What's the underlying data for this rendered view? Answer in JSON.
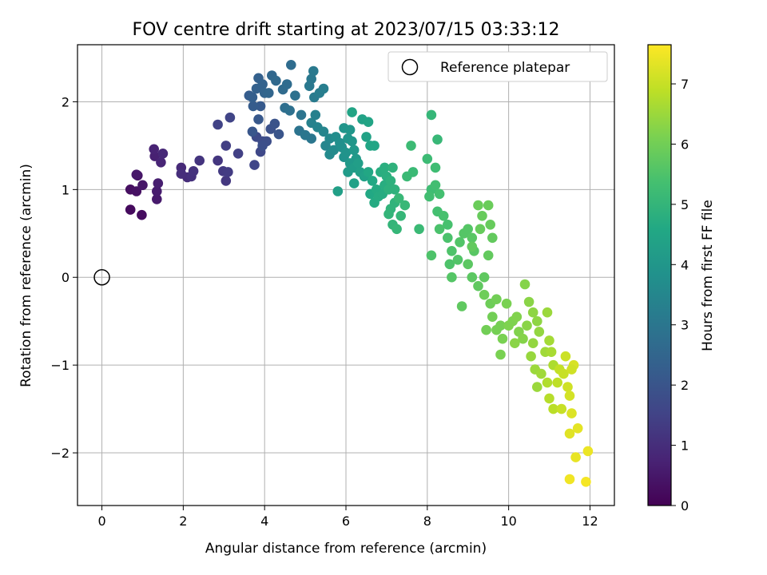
{
  "chart_data": {
    "type": "scatter",
    "title": "FOV centre drift starting at 2023/07/15 03:33:12",
    "xlabel": "Angular distance from reference (arcmin)",
    "ylabel": "Rotation from reference (arcmin)",
    "xlim": [
      -0.6,
      12.6
    ],
    "ylim": [
      -2.6,
      2.65
    ],
    "xticks": [
      0,
      2,
      4,
      6,
      8,
      10,
      12
    ],
    "yticks": [
      -2,
      -1,
      0,
      1,
      2
    ],
    "grid": true,
    "legend": {
      "position": "top-right",
      "entries": [
        "Reference platepar"
      ]
    },
    "reference_point": {
      "label": "Reference platepar",
      "x": 0,
      "y": 0
    },
    "colorbar": {
      "label": "Hours from first FF file",
      "colormap": "viridis",
      "range": [
        0,
        7.65
      ],
      "ticks": [
        0,
        1,
        2,
        3,
        4,
        5,
        6,
        7
      ]
    },
    "series": [
      {
        "points": [
          [
            0.7,
            0.77,
            0.2
          ],
          [
            0.98,
            0.71,
            0.25
          ],
          [
            0.7,
            1.0,
            0.3
          ],
          [
            0.85,
            0.98,
            0.35
          ],
          [
            0.88,
            1.16,
            0.4
          ],
          [
            1.0,
            1.05,
            0.45
          ],
          [
            0.85,
            1.17,
            0.5
          ],
          [
            1.35,
            0.89,
            0.55
          ],
          [
            1.35,
            0.98,
            0.6
          ],
          [
            1.38,
            1.07,
            0.65
          ],
          [
            1.3,
            1.38,
            0.7
          ],
          [
            1.28,
            1.46,
            0.75
          ],
          [
            1.45,
            1.31,
            0.8
          ],
          [
            1.5,
            1.41,
            0.85
          ],
          [
            1.95,
            1.25,
            0.9
          ],
          [
            2.1,
            1.14,
            0.95
          ],
          [
            1.95,
            1.18,
            1.0
          ],
          [
            2.2,
            1.15,
            1.05
          ],
          [
            2.25,
            1.21,
            1.1
          ],
          [
            2.4,
            1.33,
            1.15
          ],
          [
            2.85,
            1.33,
            1.2
          ],
          [
            3.05,
            1.1,
            1.25
          ],
          [
            2.98,
            1.21,
            1.3
          ],
          [
            3.1,
            1.2,
            1.35
          ],
          [
            3.05,
            1.5,
            1.4
          ],
          [
            3.35,
            1.41,
            1.45
          ],
          [
            2.85,
            1.74,
            1.5
          ],
          [
            3.15,
            1.82,
            1.55
          ],
          [
            3.75,
            1.28,
            1.6
          ],
          [
            3.9,
            1.43,
            1.65
          ],
          [
            3.8,
            1.6,
            1.7
          ],
          [
            3.95,
            1.55,
            1.75
          ],
          [
            4.05,
            1.55,
            1.8
          ],
          [
            3.95,
            1.5,
            1.85
          ],
          [
            4.15,
            1.69,
            1.9
          ],
          [
            4.25,
            1.75,
            1.95
          ],
          [
            4.35,
            1.63,
            2.0
          ],
          [
            3.7,
            1.66,
            2.05
          ],
          [
            3.85,
            1.8,
            2.1
          ],
          [
            3.9,
            1.95,
            2.15
          ],
          [
            3.72,
            1.95,
            2.2
          ],
          [
            3.62,
            2.07,
            2.25
          ],
          [
            3.7,
            2.05,
            2.3
          ],
          [
            3.8,
            2.15,
            2.35
          ],
          [
            3.85,
            2.27,
            2.35
          ],
          [
            3.95,
            2.2,
            2.4
          ],
          [
            4.0,
            2.1,
            2.45
          ],
          [
            4.1,
            2.1,
            2.5
          ],
          [
            4.18,
            2.3,
            2.55
          ],
          [
            4.28,
            2.24,
            2.6
          ],
          [
            4.45,
            2.14,
            2.65
          ],
          [
            4.55,
            2.2,
            2.7
          ],
          [
            4.65,
            2.42,
            2.7
          ],
          [
            4.5,
            1.93,
            2.75
          ],
          [
            4.62,
            1.9,
            2.8
          ],
          [
            4.75,
            2.07,
            2.85
          ],
          [
            4.85,
            1.67,
            2.9
          ],
          [
            4.9,
            1.85,
            2.95
          ],
          [
            5.0,
            1.62,
            3.0
          ],
          [
            5.15,
            1.58,
            3.0
          ],
          [
            5.1,
            2.18,
            3.05
          ],
          [
            5.15,
            2.26,
            3.05
          ],
          [
            5.2,
            2.35,
            3.1
          ],
          [
            5.22,
            2.05,
            3.15
          ],
          [
            5.35,
            2.1,
            3.2
          ],
          [
            5.45,
            2.15,
            3.25
          ],
          [
            5.25,
            1.85,
            3.3
          ],
          [
            5.15,
            1.76,
            3.35
          ],
          [
            5.3,
            1.71,
            3.4
          ],
          [
            5.45,
            1.66,
            3.45
          ],
          [
            5.5,
            1.5,
            3.5
          ],
          [
            5.6,
            1.58,
            3.55
          ],
          [
            5.6,
            1.4,
            3.6
          ],
          [
            5.7,
            1.45,
            3.65
          ],
          [
            5.75,
            1.6,
            3.7
          ],
          [
            5.85,
            1.53,
            3.75
          ],
          [
            5.9,
            1.48,
            3.8
          ],
          [
            5.95,
            1.37,
            3.85
          ],
          [
            6.0,
            1.42,
            3.9
          ],
          [
            6.05,
            1.58,
            3.95
          ],
          [
            5.95,
            1.7,
            3.95
          ],
          [
            6.1,
            1.68,
            4.0
          ],
          [
            6.15,
            1.55,
            4.0
          ],
          [
            6.2,
            1.45,
            4.05
          ],
          [
            6.25,
            1.35,
            4.1
          ],
          [
            6.1,
            1.3,
            4.1
          ],
          [
            6.05,
            1.2,
            4.15
          ],
          [
            6.2,
            1.25,
            4.2
          ],
          [
            6.3,
            1.3,
            4.25
          ],
          [
            6.35,
            1.2,
            4.3
          ],
          [
            5.8,
            0.98,
            4.3
          ],
          [
            6.2,
            1.07,
            4.35
          ],
          [
            6.45,
            1.15,
            4.35
          ],
          [
            6.5,
            1.6,
            4.4
          ],
          [
            6.4,
            1.8,
            4.4
          ],
          [
            6.15,
            1.88,
            4.45
          ],
          [
            6.55,
            1.77,
            4.45
          ],
          [
            6.6,
            1.5,
            4.5
          ],
          [
            6.7,
            1.5,
            4.5
          ],
          [
            6.55,
            1.2,
            4.55
          ],
          [
            6.65,
            1.1,
            4.6
          ],
          [
            6.6,
            0.95,
            4.6
          ],
          [
            6.7,
            0.85,
            4.65
          ],
          [
            6.75,
            1.0,
            4.65
          ],
          [
            6.8,
            0.92,
            4.7
          ],
          [
            6.9,
            0.95,
            4.7
          ],
          [
            6.95,
            1.05,
            4.75
          ],
          [
            6.85,
            1.2,
            4.75
          ],
          [
            6.95,
            1.25,
            4.8
          ],
          [
            7.0,
            1.15,
            4.8
          ],
          [
            7.05,
            1.0,
            4.85
          ],
          [
            7.1,
            1.1,
            4.85
          ],
          [
            7.15,
            1.25,
            4.9
          ],
          [
            7.2,
            1.0,
            4.9
          ],
          [
            7.2,
            0.85,
            4.95
          ],
          [
            7.1,
            0.78,
            4.95
          ],
          [
            7.05,
            0.72,
            5.0
          ],
          [
            7.15,
            0.6,
            5.0
          ],
          [
            7.25,
            0.55,
            5.05
          ],
          [
            7.35,
            0.7,
            5.05
          ],
          [
            7.3,
            0.9,
            5.1
          ],
          [
            7.45,
            0.82,
            5.1
          ],
          [
            7.5,
            1.15,
            5.15
          ],
          [
            7.65,
            1.2,
            5.15
          ],
          [
            7.6,
            1.5,
            5.2
          ],
          [
            8.0,
            1.35,
            5.2
          ],
          [
            8.2,
            1.25,
            5.25
          ],
          [
            8.1,
            1.0,
            5.25
          ],
          [
            8.05,
            0.92,
            5.3
          ],
          [
            8.2,
            1.05,
            5.3
          ],
          [
            8.3,
            0.95,
            5.35
          ],
          [
            8.25,
            0.75,
            5.35
          ],
          [
            8.4,
            0.7,
            5.4
          ],
          [
            8.5,
            0.6,
            5.4
          ],
          [
            8.3,
            0.55,
            5.45
          ],
          [
            8.5,
            0.45,
            5.45
          ],
          [
            8.6,
            0.3,
            5.5
          ],
          [
            8.55,
            0.15,
            5.5
          ],
          [
            8.75,
            0.2,
            5.55
          ],
          [
            8.8,
            0.4,
            5.55
          ],
          [
            8.9,
            0.5,
            5.6
          ],
          [
            9.0,
            0.55,
            5.6
          ],
          [
            9.1,
            0.45,
            5.65
          ],
          [
            9.15,
            0.3,
            5.65
          ],
          [
            9.0,
            0.15,
            5.7
          ],
          [
            9.1,
            0.0,
            5.7
          ],
          [
            9.25,
            -0.1,
            5.75
          ],
          [
            9.4,
            0.0,
            5.75
          ],
          [
            9.5,
            0.25,
            5.8
          ],
          [
            9.6,
            0.45,
            5.8
          ],
          [
            9.55,
            0.6,
            5.85
          ],
          [
            9.35,
            0.7,
            5.85
          ],
          [
            9.25,
            0.82,
            5.9
          ],
          [
            9.5,
            0.82,
            5.9
          ],
          [
            9.4,
            -0.2,
            5.95
          ],
          [
            9.55,
            -0.3,
            5.95
          ],
          [
            9.7,
            -0.25,
            6.0
          ],
          [
            9.6,
            -0.45,
            6.0
          ],
          [
            9.8,
            -0.55,
            6.05
          ],
          [
            9.7,
            -0.6,
            6.05
          ],
          [
            9.85,
            -0.7,
            6.1
          ],
          [
            9.8,
            -0.88,
            6.1
          ],
          [
            10.0,
            -0.55,
            6.15
          ],
          [
            10.1,
            -0.5,
            6.15
          ],
          [
            10.2,
            -0.45,
            6.2
          ],
          [
            10.25,
            -0.62,
            6.2
          ],
          [
            10.35,
            -0.7,
            6.25
          ],
          [
            10.4,
            -0.08,
            6.25
          ],
          [
            10.5,
            -0.28,
            6.3
          ],
          [
            10.45,
            -0.55,
            6.3
          ],
          [
            10.6,
            -0.4,
            6.35
          ],
          [
            10.7,
            -0.5,
            6.35
          ],
          [
            10.75,
            -0.62,
            6.4
          ],
          [
            10.6,
            -0.75,
            6.4
          ],
          [
            10.55,
            -0.9,
            6.45
          ],
          [
            10.65,
            -1.05,
            6.5
          ],
          [
            10.7,
            -1.25,
            6.5
          ],
          [
            10.8,
            -1.1,
            6.55
          ],
          [
            10.9,
            -0.85,
            6.55
          ],
          [
            11.0,
            -0.72,
            6.6
          ],
          [
            11.05,
            -0.85,
            6.65
          ],
          [
            11.1,
            -1.0,
            6.7
          ],
          [
            10.95,
            -1.2,
            6.75
          ],
          [
            11.0,
            -1.38,
            6.8
          ],
          [
            11.1,
            -1.5,
            6.85
          ],
          [
            11.2,
            -1.2,
            6.9
          ],
          [
            11.25,
            -1.05,
            6.95
          ],
          [
            11.35,
            -1.1,
            7.0
          ],
          [
            11.4,
            -0.9,
            7.05
          ],
          [
            11.45,
            -1.25,
            7.1
          ],
          [
            11.5,
            -1.35,
            7.15
          ],
          [
            11.6,
            -1.0,
            7.2
          ],
          [
            11.55,
            -1.55,
            7.25
          ],
          [
            11.5,
            -1.78,
            7.3
          ],
          [
            11.7,
            -1.72,
            7.35
          ],
          [
            11.65,
            -2.05,
            7.4
          ],
          [
            11.95,
            -1.98,
            7.45
          ],
          [
            11.5,
            -2.3,
            7.5
          ],
          [
            11.9,
            -2.33,
            7.55
          ],
          [
            8.1,
            1.85,
            5.05
          ],
          [
            8.25,
            1.57,
            5.1
          ],
          [
            7.8,
            0.55,
            5.15
          ],
          [
            8.1,
            0.25,
            5.5
          ],
          [
            8.6,
            0.0,
            5.6
          ],
          [
            8.85,
            -0.33,
            5.75
          ],
          [
            9.1,
            0.35,
            5.8
          ],
          [
            9.3,
            0.55,
            5.85
          ],
          [
            9.45,
            -0.6,
            6.0
          ],
          [
            9.95,
            -0.3,
            6.1
          ],
          [
            10.15,
            -0.75,
            6.3
          ],
          [
            10.95,
            -0.4,
            6.5
          ],
          [
            11.3,
            -1.5,
            7.0
          ],
          [
            11.55,
            -1.05,
            7.1
          ]
        ]
      }
    ]
  }
}
